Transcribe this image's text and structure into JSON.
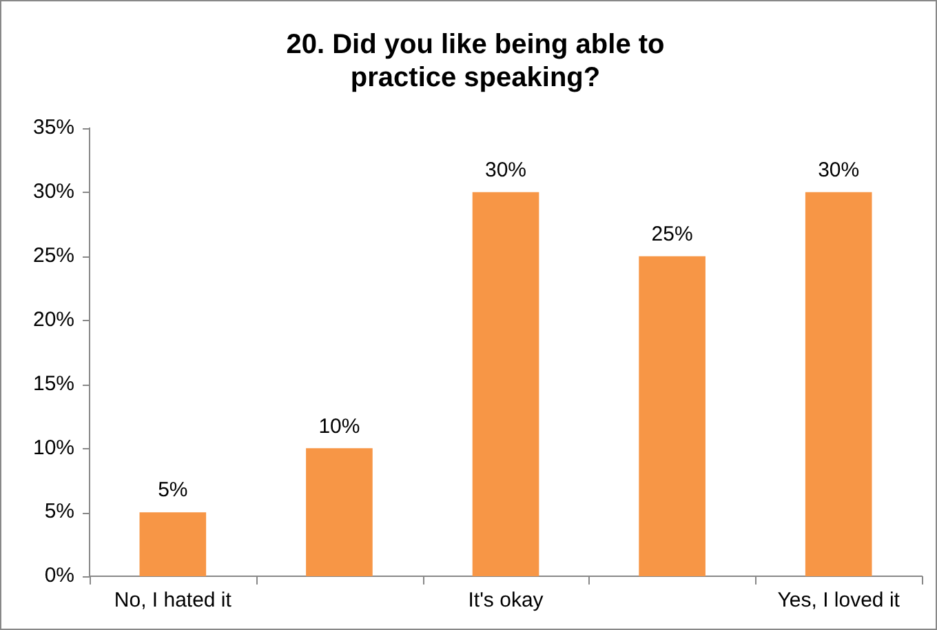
{
  "chart_data": {
    "type": "bar",
    "title": "20. Did you like being able to practice speaking?",
    "categories": [
      "No, I hated it",
      null,
      "It's okay",
      null,
      "Yes, I loved it"
    ],
    "values": [
      5,
      10,
      30,
      25,
      30
    ],
    "value_labels": [
      "5%",
      "10%",
      "30%",
      "25%",
      "30%"
    ],
    "color": "#f79646",
    "ylim": [
      0,
      35
    ],
    "yticks": [
      {
        "value": 0,
        "label": "0%"
      },
      {
        "value": 5,
        "label": "5%"
      },
      {
        "value": 10,
        "label": "10%"
      },
      {
        "value": 15,
        "label": "15%"
      },
      {
        "value": 20,
        "label": "20%"
      },
      {
        "value": 25,
        "label": "25%"
      },
      {
        "value": 30,
        "label": "30%"
      },
      {
        "value": 35,
        "label": "35%"
      }
    ],
    "grid": false,
    "legend": false
  }
}
